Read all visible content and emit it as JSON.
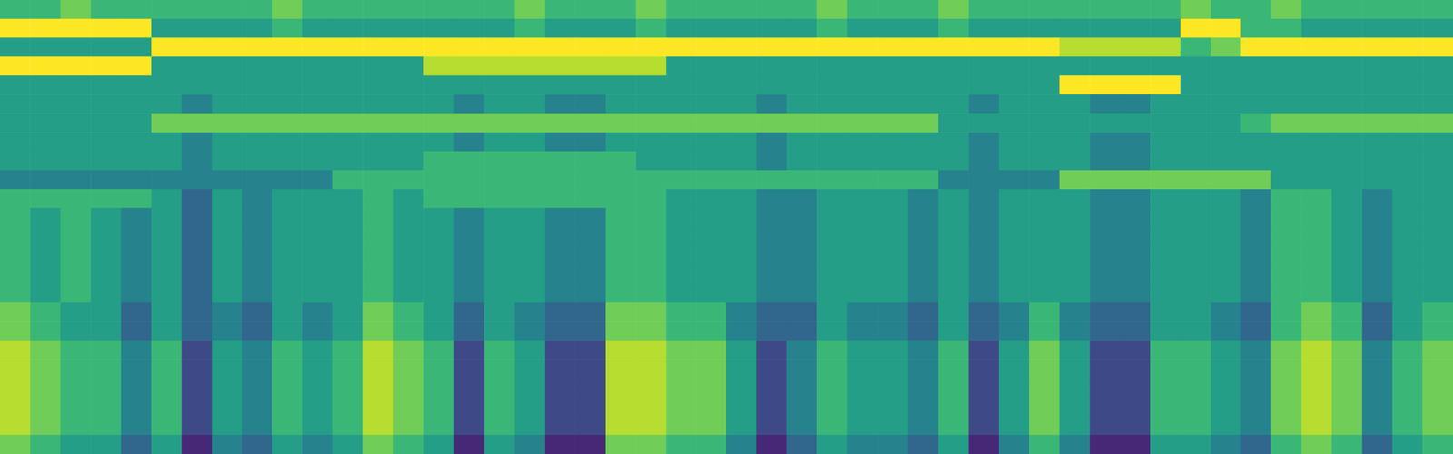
{
  "chart_data": {
    "type": "heatmap",
    "color": "viridis",
    "tick_labels": false,
    "zlim": [
      0,
      9
    ],
    "cells": [
      [
        6,
        6,
        7,
        6,
        6,
        6,
        6,
        6,
        6,
        7,
        6,
        6,
        6,
        6,
        6,
        6,
        6,
        7,
        6,
        6,
        6,
        7,
        6,
        6,
        6,
        6,
        6,
        7,
        6,
        6,
        6,
        7,
        6,
        6,
        6,
        6,
        6,
        6,
        6,
        7,
        6,
        6,
        7,
        6,
        6,
        6,
        6,
        6
      ],
      [
        9,
        9,
        9,
        9,
        9,
        5,
        5,
        5,
        5,
        6,
        5,
        5,
        5,
        5,
        5,
        5,
        5,
        6,
        5,
        5,
        5,
        6,
        5,
        5,
        5,
        5,
        5,
        6,
        5,
        5,
        5,
        6,
        5,
        5,
        5,
        5,
        5,
        5,
        5,
        9,
        9,
        6,
        6,
        5,
        5,
        5,
        5,
        5
      ],
      [
        5,
        5,
        5,
        5,
        5,
        9,
        9,
        9,
        9,
        9,
        9,
        9,
        9,
        9,
        9,
        9,
        9,
        9,
        9,
        9,
        9,
        9,
        9,
        9,
        9,
        9,
        9,
        9,
        9,
        9,
        9,
        9,
        9,
        9,
        9,
        8,
        8,
        8,
        8,
        6,
        7,
        9,
        9,
        9,
        9,
        9,
        9,
        9
      ],
      [
        9,
        9,
        9,
        9,
        9,
        5,
        5,
        5,
        5,
        5,
        5,
        5,
        5,
        5,
        8,
        8,
        8,
        8,
        8,
        8,
        8,
        8,
        5,
        5,
        5,
        5,
        5,
        5,
        5,
        5,
        5,
        5,
        5,
        5,
        5,
        5,
        5,
        5,
        5,
        5,
        5,
        5,
        5,
        5,
        5,
        5,
        5,
        5
      ],
      [
        5,
        5,
        5,
        5,
        5,
        5,
        5,
        5,
        5,
        5,
        5,
        5,
        5,
        5,
        5,
        5,
        5,
        5,
        5,
        5,
        5,
        5,
        5,
        5,
        5,
        5,
        5,
        5,
        5,
        5,
        5,
        5,
        5,
        5,
        5,
        9,
        9,
        9,
        9,
        5,
        5,
        5,
        5,
        5,
        5,
        5,
        5,
        5
      ],
      [
        5,
        5,
        5,
        5,
        5,
        5,
        4,
        5,
        5,
        5,
        5,
        5,
        5,
        5,
        5,
        4,
        5,
        5,
        4,
        4,
        5,
        5,
        5,
        5,
        5,
        4,
        5,
        5,
        5,
        5,
        5,
        5,
        4,
        5,
        5,
        5,
        4,
        4,
        5,
        5,
        5,
        5,
        5,
        5,
        5,
        5,
        5,
        5
      ],
      [
        5,
        5,
        5,
        5,
        5,
        7,
        7,
        7,
        7,
        7,
        7,
        7,
        7,
        7,
        7,
        7,
        7,
        7,
        7,
        7,
        7,
        7,
        7,
        7,
        7,
        7,
        7,
        7,
        7,
        7,
        7,
        5,
        5,
        5,
        5,
        5,
        5,
        5,
        5,
        5,
        5,
        6,
        7,
        7,
        7,
        7,
        7,
        7
      ],
      [
        5,
        5,
        5,
        5,
        5,
        5,
        4,
        5,
        5,
        5,
        5,
        5,
        5,
        5,
        5,
        4,
        5,
        5,
        4,
        4,
        5,
        5,
        5,
        5,
        5,
        4,
        5,
        5,
        5,
        5,
        5,
        5,
        4,
        5,
        5,
        5,
        4,
        4,
        5,
        5,
        5,
        5,
        5,
        5,
        5,
        5,
        5,
        5
      ],
      [
        5,
        5,
        5,
        5,
        5,
        5,
        4,
        5,
        5,
        5,
        5,
        5,
        5,
        5,
        6,
        6,
        6,
        6,
        6,
        6,
        6,
        5,
        5,
        5,
        5,
        4,
        5,
        5,
        5,
        5,
        5,
        5,
        4,
        5,
        5,
        5,
        4,
        4,
        5,
        5,
        5,
        5,
        5,
        5,
        5,
        5,
        5,
        5
      ],
      [
        4,
        4,
        4,
        4,
        4,
        4,
        4,
        4,
        4,
        4,
        4,
        6,
        6,
        6,
        6,
        6,
        6,
        6,
        6,
        6,
        6,
        6,
        6,
        6,
        6,
        6,
        6,
        6,
        6,
        6,
        6,
        4,
        4,
        4,
        4,
        7,
        7,
        7,
        7,
        7,
        7,
        7,
        5,
        5,
        5,
        5,
        5,
        5
      ],
      [
        6,
        6,
        6,
        6,
        6,
        5,
        3,
        5,
        4,
        5,
        5,
        5,
        6,
        5,
        6,
        6,
        6,
        6,
        6,
        6,
        6,
        6,
        5,
        5,
        5,
        4,
        4,
        5,
        5,
        5,
        4,
        5,
        4,
        5,
        5,
        5,
        4,
        4,
        5,
        5,
        5,
        4,
        6,
        6,
        5,
        4,
        5,
        5
      ],
      [
        6,
        5,
        6,
        5,
        4,
        5,
        3,
        5,
        4,
        5,
        5,
        5,
        6,
        5,
        5,
        4,
        5,
        5,
        4,
        4,
        6,
        6,
        5,
        5,
        5,
        4,
        4,
        5,
        5,
        5,
        4,
        5,
        4,
        5,
        5,
        5,
        4,
        4,
        5,
        5,
        5,
        4,
        6,
        6,
        5,
        4,
        5,
        5
      ],
      [
        6,
        5,
        6,
        5,
        4,
        5,
        3,
        5,
        4,
        5,
        5,
        5,
        6,
        5,
        5,
        4,
        5,
        5,
        4,
        4,
        6,
        6,
        5,
        5,
        5,
        4,
        4,
        5,
        5,
        5,
        4,
        5,
        4,
        5,
        5,
        5,
        4,
        4,
        5,
        5,
        5,
        4,
        6,
        6,
        5,
        4,
        5,
        5
      ],
      [
        6,
        5,
        6,
        5,
        4,
        5,
        3,
        5,
        4,
        5,
        5,
        5,
        6,
        5,
        5,
        4,
        5,
        5,
        4,
        4,
        6,
        6,
        5,
        5,
        5,
        4,
        4,
        5,
        5,
        5,
        4,
        5,
        4,
        5,
        5,
        5,
        4,
        4,
        5,
        5,
        5,
        4,
        6,
        6,
        5,
        4,
        5,
        5
      ],
      [
        6,
        5,
        6,
        5,
        4,
        5,
        3,
        5,
        4,
        5,
        5,
        5,
        6,
        5,
        5,
        4,
        5,
        5,
        4,
        4,
        6,
        6,
        5,
        5,
        5,
        4,
        4,
        5,
        5,
        5,
        4,
        5,
        4,
        5,
        5,
        5,
        4,
        4,
        5,
        5,
        5,
        4,
        6,
        6,
        5,
        4,
        5,
        5
      ],
      [
        6,
        5,
        6,
        5,
        4,
        5,
        3,
        5,
        4,
        5,
        5,
        5,
        6,
        5,
        5,
        4,
        5,
        5,
        4,
        4,
        6,
        6,
        5,
        5,
        5,
        4,
        4,
        5,
        5,
        5,
        4,
        5,
        4,
        5,
        5,
        5,
        4,
        4,
        5,
        5,
        5,
        4,
        6,
        6,
        5,
        4,
        5,
        5
      ],
      [
        7,
        6,
        5,
        5,
        3,
        5,
        3,
        4,
        3,
        5,
        4,
        5,
        7,
        6,
        5,
        3,
        5,
        4,
        3,
        3,
        7,
        7,
        6,
        6,
        4,
        3,
        3,
        5,
        4,
        4,
        3,
        5,
        3,
        4,
        6,
        4,
        3,
        3,
        5,
        5,
        4,
        3,
        6,
        7,
        6,
        3,
        5,
        6
      ],
      [
        7,
        6,
        5,
        5,
        3,
        5,
        3,
        4,
        3,
        5,
        4,
        5,
        7,
        6,
        5,
        3,
        5,
        4,
        3,
        3,
        7,
        7,
        6,
        6,
        4,
        3,
        3,
        5,
        4,
        4,
        3,
        5,
        3,
        4,
        6,
        4,
        3,
        3,
        5,
        5,
        4,
        3,
        6,
        7,
        6,
        3,
        5,
        6
      ],
      [
        8,
        7,
        6,
        6,
        4,
        6,
        2,
        5,
        4,
        6,
        5,
        6,
        8,
        7,
        6,
        2,
        6,
        5,
        2,
        2,
        8,
        8,
        7,
        7,
        5,
        2,
        4,
        6,
        5,
        5,
        4,
        6,
        2,
        5,
        7,
        5,
        2,
        2,
        6,
        6,
        5,
        4,
        7,
        8,
        7,
        4,
        6,
        7
      ],
      [
        8,
        7,
        6,
        6,
        4,
        6,
        2,
        5,
        4,
        6,
        5,
        6,
        8,
        7,
        6,
        2,
        6,
        5,
        2,
        2,
        8,
        8,
        7,
        7,
        5,
        2,
        4,
        6,
        5,
        5,
        4,
        6,
        2,
        5,
        7,
        5,
        2,
        2,
        6,
        6,
        5,
        4,
        7,
        8,
        7,
        4,
        6,
        7
      ],
      [
        8,
        7,
        6,
        6,
        4,
        6,
        2,
        5,
        4,
        6,
        5,
        6,
        8,
        7,
        6,
        2,
        6,
        5,
        2,
        2,
        8,
        8,
        7,
        7,
        5,
        2,
        4,
        6,
        5,
        5,
        4,
        6,
        2,
        5,
        7,
        5,
        2,
        2,
        6,
        6,
        5,
        4,
        7,
        8,
        7,
        4,
        6,
        7
      ],
      [
        8,
        7,
        6,
        6,
        4,
        6,
        2,
        5,
        4,
        6,
        5,
        6,
        8,
        7,
        6,
        2,
        6,
        5,
        2,
        2,
        8,
        8,
        7,
        7,
        5,
        2,
        4,
        6,
        5,
        5,
        4,
        6,
        2,
        5,
        7,
        5,
        2,
        2,
        6,
        6,
        5,
        4,
        7,
        8,
        7,
        4,
        6,
        7
      ],
      [
        8,
        7,
        6,
        6,
        4,
        6,
        2,
        5,
        4,
        6,
        5,
        6,
        8,
        7,
        6,
        2,
        6,
        5,
        2,
        2,
        8,
        8,
        7,
        7,
        5,
        2,
        4,
        6,
        5,
        5,
        4,
        6,
        2,
        5,
        7,
        5,
        2,
        2,
        6,
        6,
        5,
        4,
        7,
        8,
        7,
        4,
        6,
        7
      ],
      [
        7,
        6,
        5,
        5,
        3,
        5,
        1,
        4,
        3,
        5,
        4,
        5,
        7,
        6,
        5,
        1,
        5,
        4,
        1,
        1,
        7,
        7,
        6,
        6,
        4,
        1,
        3,
        5,
        4,
        4,
        3,
        5,
        1,
        4,
        6,
        4,
        1,
        1,
        5,
        5,
        4,
        3,
        6,
        7,
        6,
        3,
        5,
        6
      ]
    ]
  }
}
